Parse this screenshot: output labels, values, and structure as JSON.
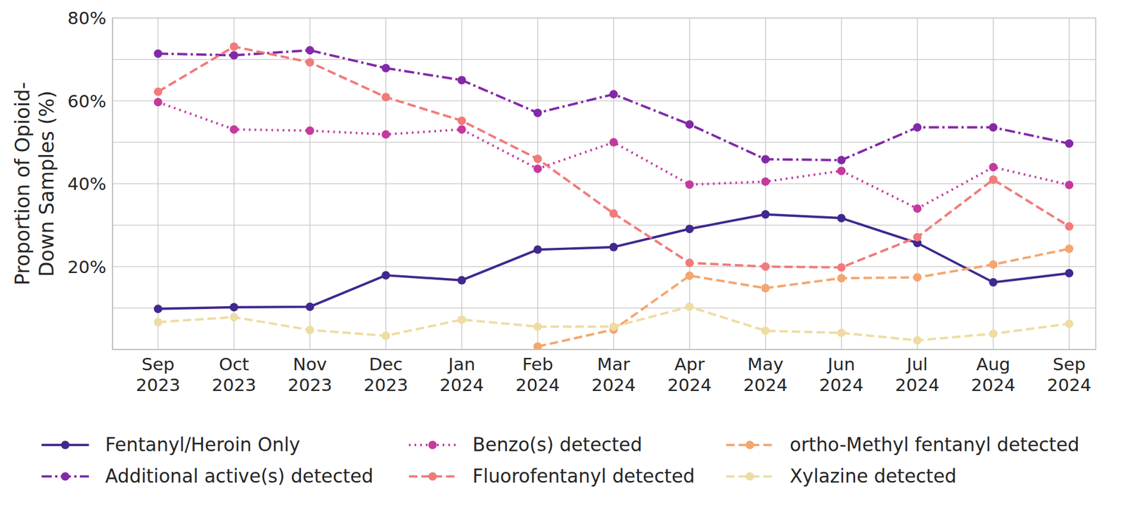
{
  "chart_data": {
    "type": "line",
    "y_label": "Proportion of Opioid-\nDown Samples (%)",
    "categories": [
      "Sep 2023",
      "Oct 2023",
      "Nov 2023",
      "Dec 2023",
      "Jan 2024",
      "Feb 2024",
      "Mar 2024",
      "Apr 2024",
      "May 2024",
      "Jun 2024",
      "Jul 2024",
      "Aug 2024",
      "Sep 2024"
    ],
    "ylim": [
      0,
      80
    ],
    "yticks": [
      {
        "value": 10,
        "label": null
      },
      {
        "value": 20,
        "label": "20%"
      },
      {
        "value": 30,
        "label": null
      },
      {
        "value": 40,
        "label": "40%"
      },
      {
        "value": 50,
        "label": null
      },
      {
        "value": 60,
        "label": "60%"
      },
      {
        "value": 70,
        "label": null
      },
      {
        "value": 80,
        "label": "80%"
      }
    ],
    "grid": true,
    "legend": "bottom",
    "series": [
      {
        "name": "Fentanyl/Heroin Only",
        "color": "#40288f",
        "line_style": "solid",
        "marker": "circle",
        "values": [
          9.8,
          10.2,
          10.3,
          17.9,
          16.7,
          24.1,
          24.7,
          29.1,
          32.6,
          31.7,
          25.7,
          16.2,
          18.4
        ]
      },
      {
        "name": "Additional active(s) detected",
        "color": "#8229a8",
        "line_style": "dashdot",
        "marker": "circle",
        "values": [
          71.4,
          71.0,
          72.2,
          67.9,
          65.0,
          57.1,
          61.6,
          54.3,
          45.9,
          45.7,
          53.6,
          53.6,
          49.7
        ]
      },
      {
        "name": "Benzo(s) detected",
        "color": "#c5399f",
        "line_style": "dotted",
        "marker": "circle",
        "values": [
          59.7,
          53.1,
          52.8,
          51.9,
          53.1,
          43.6,
          50.0,
          39.8,
          40.5,
          43.1,
          34.0,
          44.0,
          39.7
        ]
      },
      {
        "name": "Fluorofentanyl detected",
        "color": "#f27a7a",
        "line_style": "dashed",
        "marker": "circle",
        "values": [
          62.2,
          73.1,
          69.3,
          60.9,
          55.2,
          46.0,
          32.8,
          20.9,
          20.0,
          19.8,
          27.1,
          41.0,
          29.7
        ]
      },
      {
        "name": "ortho-Methyl fentanyl detected",
        "color": "#f4a66f",
        "line_style": "dashed",
        "marker": "circle",
        "values": [
          null,
          null,
          null,
          null,
          null,
          0.7,
          4.8,
          17.8,
          14.8,
          17.2,
          17.4,
          20.5,
          24.3
        ]
      },
      {
        "name": "Xylazine detected",
        "color": "#efdca2",
        "line_style": "dashed",
        "marker": "circle",
        "values": [
          6.6,
          7.8,
          4.7,
          3.3,
          7.2,
          5.5,
          5.5,
          10.3,
          4.5,
          4.0,
          2.2,
          3.8,
          6.2
        ]
      }
    ]
  }
}
